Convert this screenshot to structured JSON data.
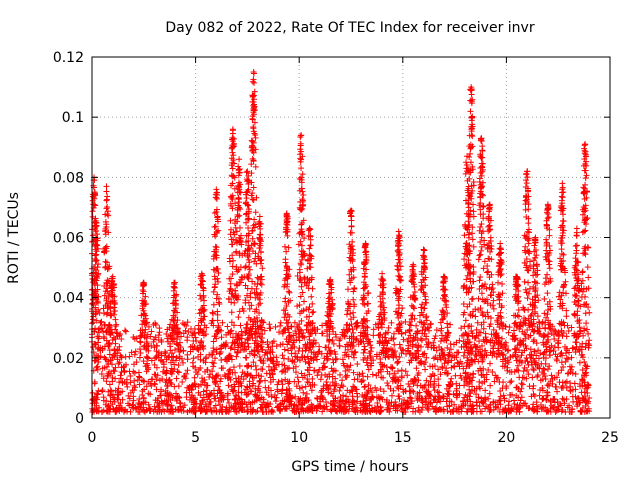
{
  "chart_data": {
    "type": "scatter",
    "title": "Day 082 of 2022, Rate Of TEC Index for receiver invr",
    "xlabel": "GPS time / hours",
    "ylabel": "ROTI / TECUs",
    "xlim": [
      0,
      25
    ],
    "ylim": [
      0,
      0.12
    ],
    "xticks": [
      0,
      5,
      10,
      15,
      20,
      25
    ],
    "xtick_labels": [
      "0",
      "5",
      "10",
      "15",
      "20",
      "25"
    ],
    "yticks": [
      0,
      0.02,
      0.04,
      0.06,
      0.08,
      0.1,
      0.12
    ],
    "ytick_labels": [
      "0",
      "0.02",
      "0.04",
      "0.06",
      "0.08",
      "0.1",
      "0.12"
    ],
    "grid": true,
    "marker": "plus",
    "color": "#ff0000",
    "series": [
      {
        "name": "ROTI",
        "peaks": [
          {
            "x": 0.1,
            "y": 0.08
          },
          {
            "x": 0.2,
            "y": 0.065
          },
          {
            "x": 0.7,
            "y": 0.077
          },
          {
            "x": 1.0,
            "y": 0.047
          },
          {
            "x": 2.5,
            "y": 0.045
          },
          {
            "x": 4.0,
            "y": 0.045
          },
          {
            "x": 5.3,
            "y": 0.048
          },
          {
            "x": 6.0,
            "y": 0.076
          },
          {
            "x": 6.8,
            "y": 0.096
          },
          {
            "x": 7.1,
            "y": 0.086
          },
          {
            "x": 7.5,
            "y": 0.082
          },
          {
            "x": 7.8,
            "y": 0.115
          },
          {
            "x": 8.1,
            "y": 0.067
          },
          {
            "x": 9.4,
            "y": 0.068
          },
          {
            "x": 10.1,
            "y": 0.094
          },
          {
            "x": 10.5,
            "y": 0.063
          },
          {
            "x": 11.5,
            "y": 0.046
          },
          {
            "x": 12.5,
            "y": 0.069
          },
          {
            "x": 13.2,
            "y": 0.058
          },
          {
            "x": 14.0,
            "y": 0.048
          },
          {
            "x": 14.8,
            "y": 0.062
          },
          {
            "x": 15.5,
            "y": 0.051
          },
          {
            "x": 16.0,
            "y": 0.056
          },
          {
            "x": 17.0,
            "y": 0.047
          },
          {
            "x": 18.1,
            "y": 0.087
          },
          {
            "x": 18.3,
            "y": 0.11
          },
          {
            "x": 18.8,
            "y": 0.093
          },
          {
            "x": 19.2,
            "y": 0.071
          },
          {
            "x": 19.7,
            "y": 0.058
          },
          {
            "x": 20.5,
            "y": 0.047
          },
          {
            "x": 21.0,
            "y": 0.082
          },
          {
            "x": 21.4,
            "y": 0.06
          },
          {
            "x": 22.0,
            "y": 0.071
          },
          {
            "x": 22.7,
            "y": 0.078
          },
          {
            "x": 23.4,
            "y": 0.063
          },
          {
            "x": 23.8,
            "y": 0.091
          }
        ],
        "baseline_range": [
          0.002,
          0.032
        ],
        "x_range": [
          0,
          24
        ]
      }
    ]
  }
}
